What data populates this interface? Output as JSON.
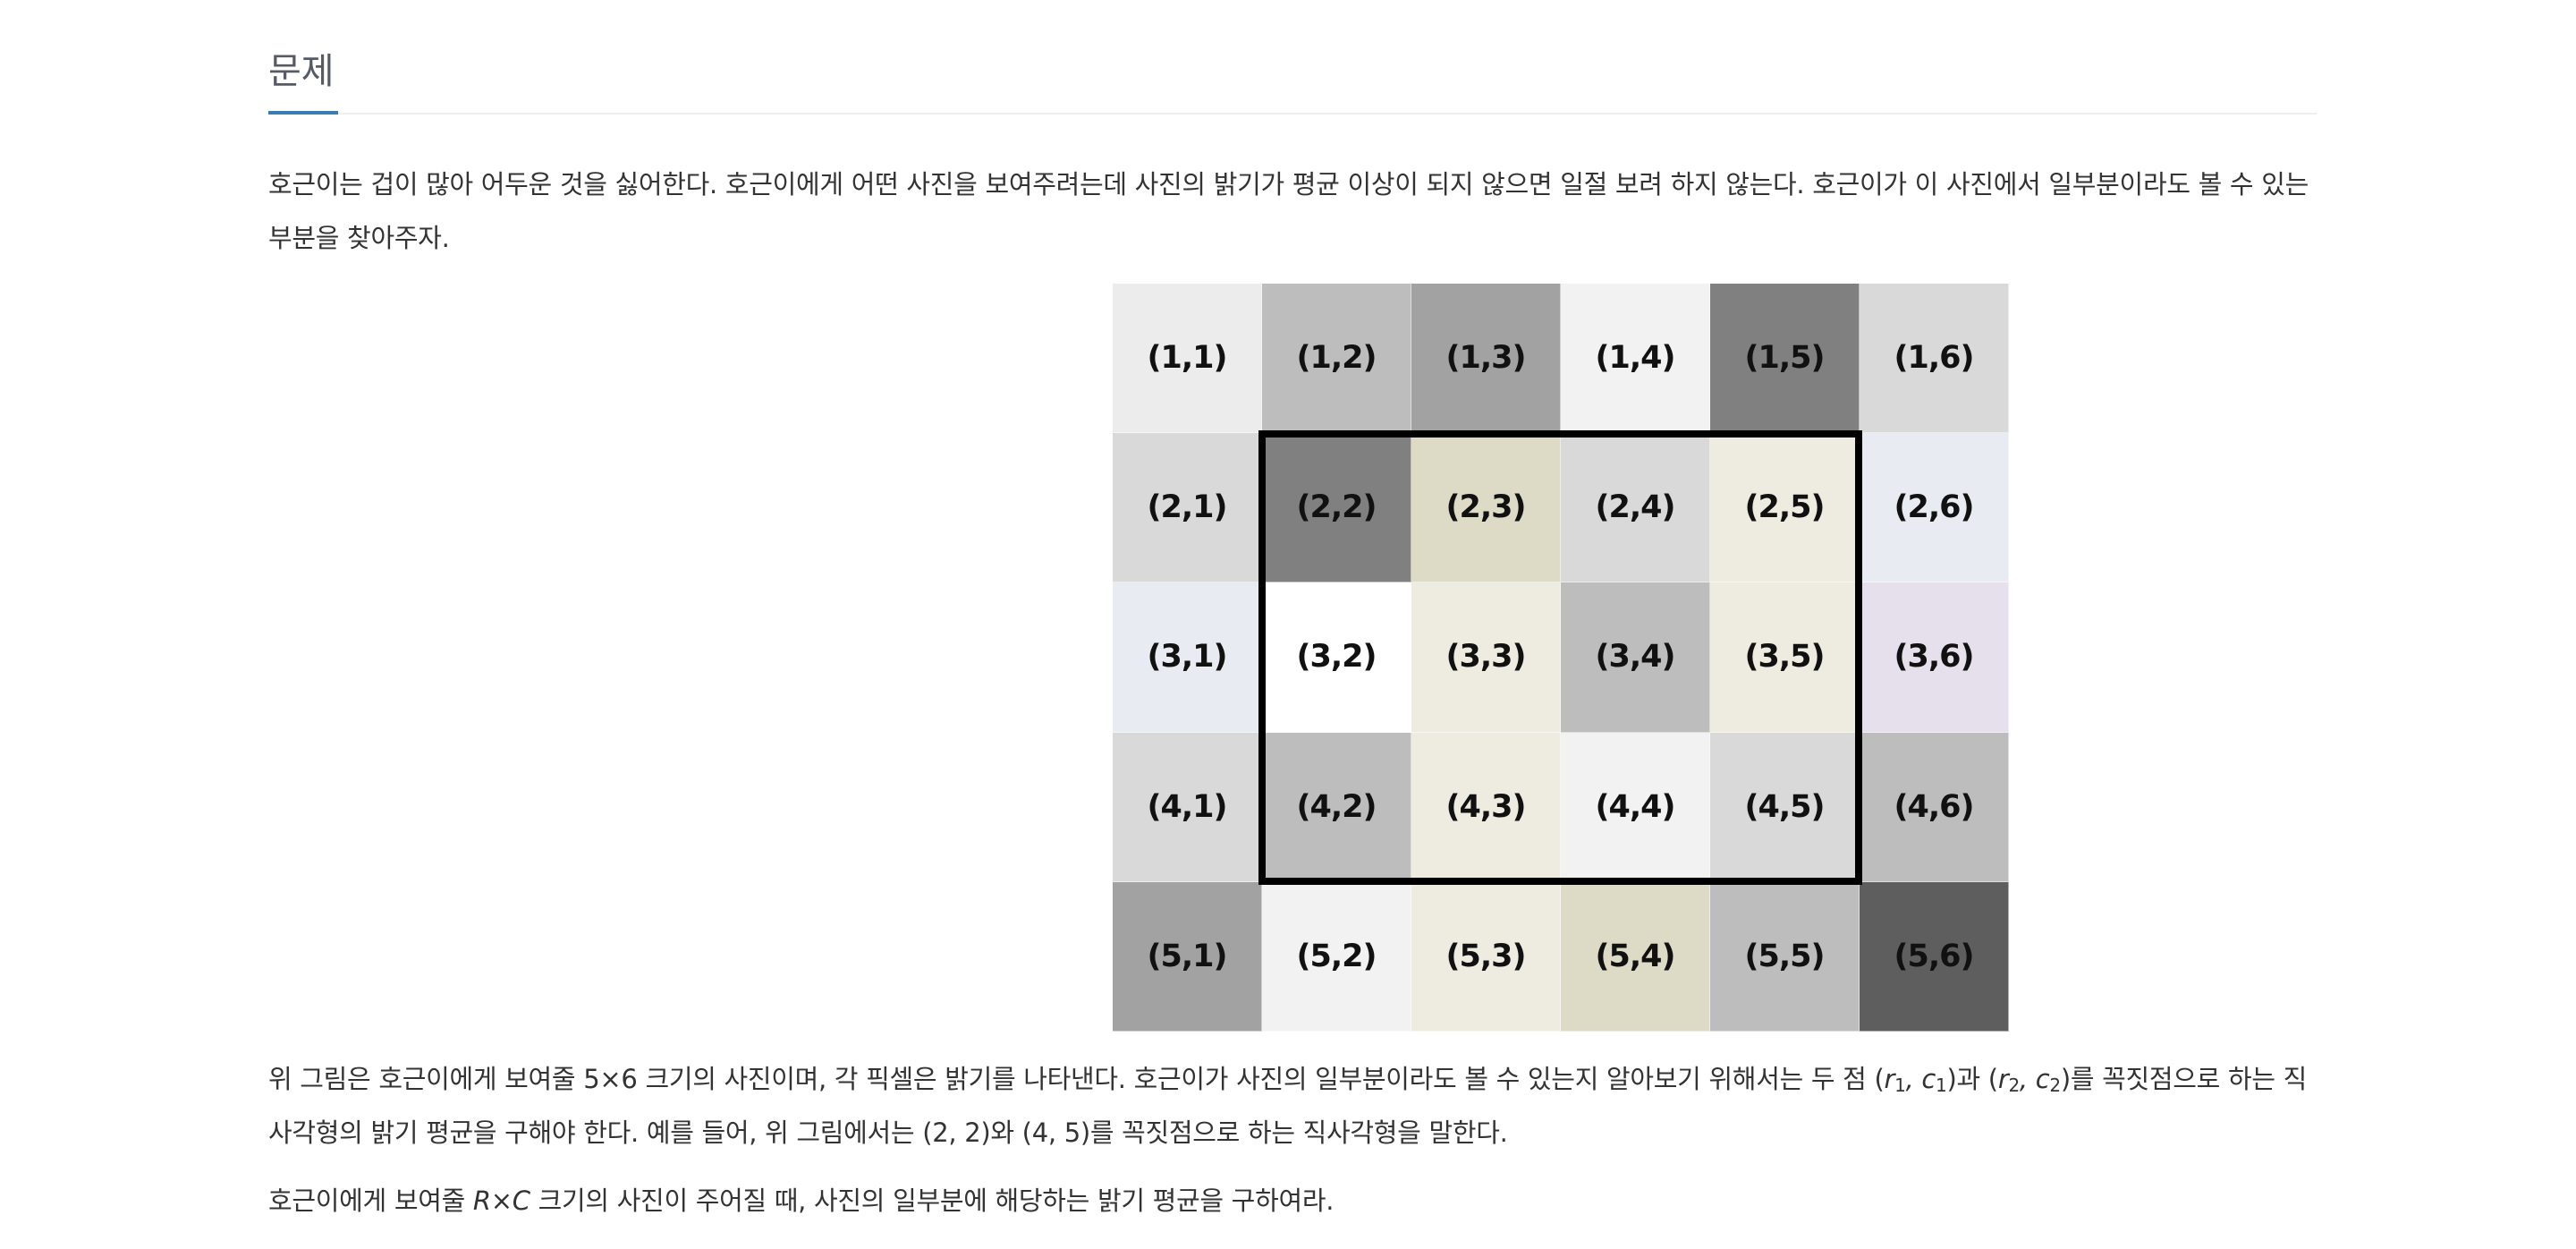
{
  "heading": "문제",
  "paragraph1": "호근이는 겁이 많아 어두운 것을 싫어한다. 호근이에게 어떤 사진을 보여주려는데 사진의 밝기가 평균 이상이 되지 않으면 일절 보려 하지 않는다. 호근이가 이 사진에서 일부분이라도 볼 수 있는 부분을 찾아주자.",
  "grid": {
    "rows": [
      [
        {
          "label": "(1,1)",
          "color": "#ececec"
        },
        {
          "label": "(1,2)",
          "color": "#bdbdbd"
        },
        {
          "label": "(1,3)",
          "color": "#a2a2a2"
        },
        {
          "label": "(1,4)",
          "color": "#f2f2f2"
        },
        {
          "label": "(1,5)",
          "color": "#808080"
        },
        {
          "label": "(1,6)",
          "color": "#d9d9d9"
        }
      ],
      [
        {
          "label": "(2,1)",
          "color": "#d9d9d9"
        },
        {
          "label": "(2,2)",
          "color": "#808080"
        },
        {
          "label": "(2,3)",
          "color": "#dddac6"
        },
        {
          "label": "(2,4)",
          "color": "#d9d9d9"
        },
        {
          "label": "(2,5)",
          "color": "#eeece1"
        },
        {
          "label": "(2,6)",
          "color": "#e9ebf2"
        }
      ],
      [
        {
          "label": "(3,1)",
          "color": "#e9ebf2"
        },
        {
          "label": "(3,2)",
          "color": "#ffffff"
        },
        {
          "label": "(3,3)",
          "color": "#eeece1"
        },
        {
          "label": "(3,4)",
          "color": "#bdbdbd"
        },
        {
          "label": "(3,5)",
          "color": "#eeece1"
        },
        {
          "label": "(3,6)",
          "color": "#e5e0ec"
        }
      ],
      [
        {
          "label": "(4,1)",
          "color": "#d9d9d9"
        },
        {
          "label": "(4,2)",
          "color": "#bdbdbd"
        },
        {
          "label": "(4,3)",
          "color": "#eeece1"
        },
        {
          "label": "(4,4)",
          "color": "#f2f2f2"
        },
        {
          "label": "(4,5)",
          "color": "#d9d9d9"
        },
        {
          "label": "(4,6)",
          "color": "#bdbdbd"
        }
      ],
      [
        {
          "label": "(5,1)",
          "color": "#a2a2a2"
        },
        {
          "label": "(5,2)",
          "color": "#f2f2f2"
        },
        {
          "label": "(5,3)",
          "color": "#eeece1"
        },
        {
          "label": "(5,4)",
          "color": "#dddac6"
        },
        {
          "label": "(5,5)",
          "color": "#bdbdbd"
        },
        {
          "label": "(5,6)",
          "color": "#5e5e5e"
        }
      ]
    ],
    "highlight_border_color": "#000000"
  },
  "paragraph2": {
    "a": "위 그림은 호근이에게 보여줄 5×6 크기의 사진이며, 각 픽셀은 밝기를 나타낸다. 호근이가 사진의 일부분이라도 볼 수 있는지 알아보기 위해서는 두 점 (",
    "r1": "r",
    "r1_sub": "1",
    "comma1": ", ",
    "c1": "c",
    "c1_sub": "1",
    "b": ")과 (",
    "r2": "r",
    "r2_sub": "2",
    "comma2": ", ",
    "c2": "c",
    "c2_sub": "2",
    "c": ")를 꼭짓점으로 하는 직사각형의 밝기 평균을 구해야 한다. 예를 들어, 위 그림에서는 (2, 2)와 (4, 5)를 꼭짓점으로 하는 직사각형을 말한다."
  },
  "paragraph3": {
    "a": "호근이에게 보여줄 ",
    "var": "R×C",
    "b": " 크기의 사진이 주어질 때, 사진의 일부분에 해당하는 밝기 평균을 구하여라."
  },
  "accent_color": "#3a7bb3"
}
